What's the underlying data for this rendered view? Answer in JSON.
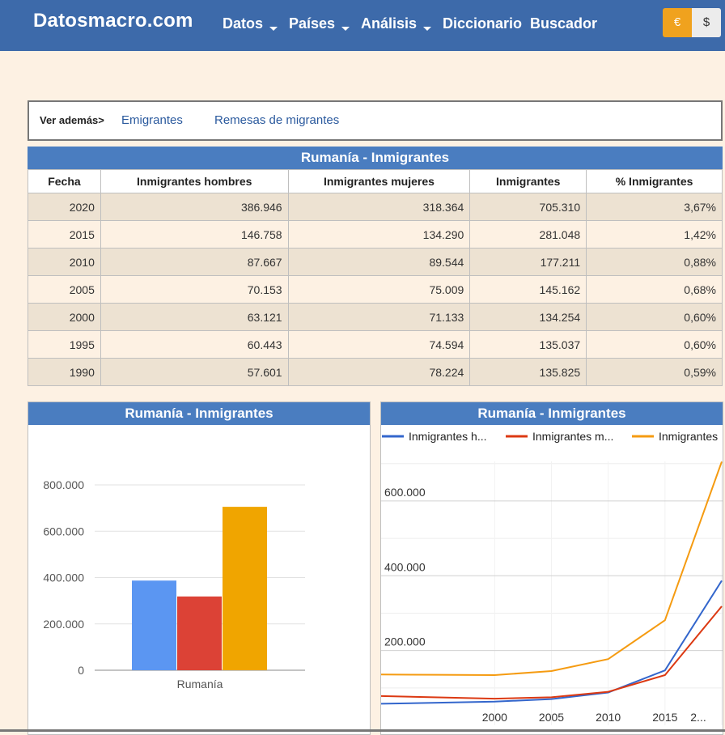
{
  "header": {
    "brand": "Datosmacro.com",
    "nav": [
      {
        "label": "Datos",
        "dropdown": true
      },
      {
        "label": "Países",
        "dropdown": true
      },
      {
        "label": "Análisis",
        "dropdown": true
      },
      {
        "label": "Diccionario",
        "dropdown": false
      },
      {
        "label": "Buscador",
        "dropdown": false
      }
    ],
    "currency": {
      "eur": "€",
      "usd": "$"
    }
  },
  "see_also": {
    "label": "Ver además>",
    "links": [
      "Emigrantes",
      "Remesas de migrantes"
    ]
  },
  "table": {
    "title": "Rumanía - Inmigrantes",
    "columns": [
      "Fecha",
      "Inmigrantes hombres",
      "Inmigrantes mujeres",
      "Inmigrantes",
      "% Inmigrantes"
    ],
    "rows": [
      [
        "2020",
        "386.946",
        "318.364",
        "705.310",
        "3,67%"
      ],
      [
        "2015",
        "146.758",
        "134.290",
        "281.048",
        "1,42%"
      ],
      [
        "2010",
        "87.667",
        "89.544",
        "177.211",
        "0,88%"
      ],
      [
        "2005",
        "70.153",
        "75.009",
        "145.162",
        "0,68%"
      ],
      [
        "2000",
        "63.121",
        "71.133",
        "134.254",
        "0,60%"
      ],
      [
        "1995",
        "60.443",
        "74.594",
        "135.037",
        "0,60%"
      ],
      [
        "1990",
        "57.601",
        "78.224",
        "135.825",
        "0,59%"
      ]
    ]
  },
  "colors": {
    "header": "#3d6aaa",
    "title_bar": "#4a7dc0",
    "men_bar": "#5b96f2",
    "women_bar": "#dc4236",
    "total_bar": "#f0a500",
    "men_line": "#3366cc",
    "women_line": "#dc3912",
    "total_line": "#f59b11"
  },
  "chart_data": [
    {
      "type": "bar",
      "title": "Rumanía - Inmigrantes",
      "categories": [
        "Rumanía"
      ],
      "series": [
        {
          "values": [
            386946
          ]
        },
        {
          "values": [
            318364
          ]
        },
        {
          "values": [
            705310
          ]
        }
      ],
      "ylim": [
        0,
        800000
      ],
      "yticks": [
        "0",
        "200.000",
        "400.000",
        "600.000",
        "800.000"
      ],
      "grid": true
    },
    {
      "type": "line",
      "title": "Rumanía - Inmigrantes",
      "x": [
        1990,
        1995,
        2000,
        2005,
        2010,
        2015,
        2020
      ],
      "series": [
        {
          "name": "Inmigrantes h...",
          "values": [
            57601,
            60443,
            63121,
            70153,
            87667,
            146758,
            386946
          ]
        },
        {
          "name": "Inmigrantes m...",
          "values": [
            78224,
            74594,
            71133,
            75009,
            89544,
            134290,
            318364
          ]
        },
        {
          "name": "Inmigrantes",
          "values": [
            135825,
            135037,
            134254,
            145162,
            177211,
            281048,
            705310
          ]
        }
      ],
      "xticks": [
        "2000",
        "2005",
        "2010",
        "2015",
        "2..."
      ],
      "yticks": [
        "200.000",
        "400.000",
        "600.000"
      ],
      "legend": "top",
      "grid": true
    }
  ]
}
